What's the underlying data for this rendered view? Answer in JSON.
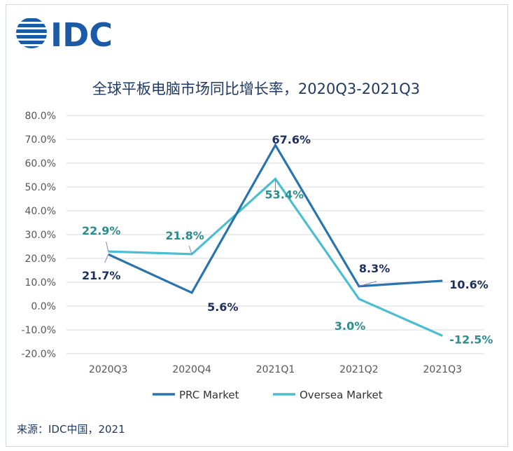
{
  "logo": {
    "text": "IDC",
    "color": "#1b5aa6",
    "icon": "idc-globe-logo"
  },
  "footer": {
    "source": "来源：IDC中国，2021"
  },
  "colors": {
    "prc": "#2a74ad",
    "oversea": "#4bbfd1",
    "prc_label": "#1c2f5e",
    "oversea_label": "#2e8c8c",
    "title": "#1f3a64",
    "grid": "#d9d9d9",
    "axis_text": "#555555"
  },
  "chart_data": {
    "type": "line",
    "title": "全球平板电脑市场同比增长率，2020Q3-2021Q3",
    "xlabel": "",
    "ylabel": "",
    "categories": [
      "2020Q3",
      "2020Q4",
      "2021Q1",
      "2021Q2",
      "2021Q3"
    ],
    "ylim": [
      -20,
      80
    ],
    "yticks": [
      -20,
      -10,
      0,
      10,
      20,
      30,
      40,
      50,
      60,
      70,
      80
    ],
    "ytick_labels": [
      "-20.0%",
      "-10.0%",
      "0.0%",
      "10.0%",
      "20.0%",
      "30.0%",
      "40.0%",
      "50.0%",
      "60.0%",
      "70.0%",
      "80.0%"
    ],
    "grid": true,
    "legend_position": "bottom",
    "series": [
      {
        "name": "PRC Market",
        "values": [
          21.7,
          5.6,
          67.6,
          8.3,
          10.6
        ],
        "labels": [
          "21.7%",
          "5.6%",
          "67.6%",
          "8.3%",
          "10.6%"
        ]
      },
      {
        "name": "Oversea Market",
        "values": [
          22.9,
          21.8,
          53.4,
          3.0,
          -12.5
        ],
        "labels": [
          "22.9%",
          "21.8%",
          "53.4%",
          "3.0%",
          "-12.5%"
        ]
      }
    ]
  }
}
